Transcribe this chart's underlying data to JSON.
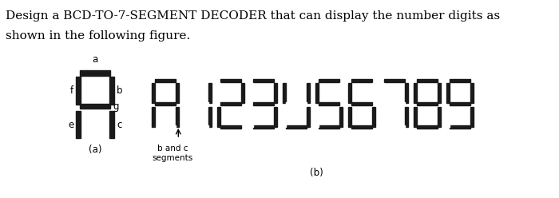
{
  "title_line1": "Design a BCD-TO-7-SEGMENT DECODER that can display the number digits as",
  "title_line2": "shown in the following figure.",
  "title_fontsize": 11,
  "bg_color": "#ffffff",
  "seg_color": "#1a1a1a",
  "seg_off_color": "#ffffff",
  "label_a": "(a)",
  "label_b": "(b)",
  "arrow_label": "b and c\nsegments",
  "digits": [
    0,
    1,
    2,
    3,
    4,
    5,
    6,
    7,
    8,
    9
  ],
  "segments": {
    "0": [
      1,
      1,
      1,
      0,
      1,
      1,
      1
    ],
    "1": [
      0,
      1,
      1,
      0,
      0,
      0,
      0
    ],
    "2": [
      1,
      1,
      0,
      1,
      1,
      0,
      1
    ],
    "3": [
      1,
      1,
      1,
      1,
      0,
      0,
      1
    ],
    "4": [
      0,
      1,
      1,
      1,
      0,
      1,
      0
    ],
    "5": [
      1,
      0,
      1,
      1,
      0,
      1,
      1
    ],
    "6": [
      1,
      0,
      1,
      1,
      1,
      1,
      1
    ],
    "7": [
      1,
      1,
      1,
      0,
      0,
      0,
      0
    ],
    "8": [
      1,
      1,
      1,
      1,
      1,
      1,
      1
    ],
    "9": [
      1,
      1,
      1,
      1,
      0,
      1,
      1
    ]
  }
}
